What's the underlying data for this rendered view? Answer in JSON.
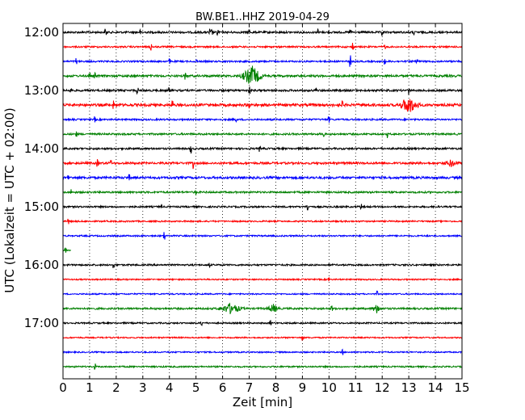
{
  "chart_data": {
    "type": "line",
    "title": "BW.BE1..HHZ 2019-04-29",
    "xlabel": "Zeit  [min]",
    "ylabel": "UTC (Lokalzeit = UTC + 02:00)",
    "xlim": [
      0,
      15
    ],
    "x_ticks": [
      0,
      1,
      2,
      3,
      4,
      5,
      6,
      7,
      8,
      9,
      10,
      11,
      12,
      13,
      14,
      15
    ],
    "y_tick_labels": [
      "12:00",
      "13:00",
      "14:00",
      "15:00",
      "16:00",
      "17:00"
    ],
    "grid": "vertical-dotted",
    "colors": {
      "black": "#000000",
      "red": "#ff0000",
      "blue": "#0000ff",
      "green": "#008000"
    },
    "traces": [
      {
        "start": "12:00",
        "color": "black",
        "noise": 1.2,
        "spikes": [
          [
            1.6,
            4
          ],
          [
            2.9,
            3
          ],
          [
            5.5,
            4
          ],
          [
            5.6,
            3
          ],
          [
            5.8,
            4
          ],
          [
            7.0,
            3
          ],
          [
            9.6,
            4
          ],
          [
            10.8,
            3
          ],
          [
            12.0,
            5
          ],
          [
            13.2,
            3
          ],
          [
            15.0,
            6
          ]
        ]
      },
      {
        "start": "12:15",
        "color": "red",
        "noise": 1.0,
        "spikes": [
          [
            3.3,
            4
          ],
          [
            10.9,
            6
          ],
          [
            12.1,
            4
          ],
          [
            13.0,
            3
          ]
        ]
      },
      {
        "start": "12:30",
        "color": "blue",
        "noise": 1.0,
        "spikes": [
          [
            0.5,
            4
          ],
          [
            4.0,
            3
          ],
          [
            5.0,
            3
          ],
          [
            10.8,
            7
          ],
          [
            12.1,
            3
          ],
          [
            13.3,
            3
          ]
        ]
      },
      {
        "start": "12:45",
        "color": "green",
        "noise": 1.3,
        "spikes": [
          [
            1.0,
            3
          ],
          [
            1.2,
            3
          ],
          [
            4.6,
            4
          ]
        ],
        "events": [
          [
            7.1,
            12,
            0.55
          ]
        ]
      },
      {
        "start": "13:00",
        "color": "black",
        "noise": 1.2,
        "spikes": [
          [
            0.3,
            3
          ],
          [
            2.8,
            3
          ],
          [
            4.0,
            3
          ],
          [
            7.0,
            4
          ],
          [
            9.5,
            3
          ],
          [
            13.0,
            6
          ]
        ]
      },
      {
        "start": "13:15",
        "color": "red",
        "noise": 1.6,
        "spikes": [
          [
            1.9,
            4
          ],
          [
            4.1,
            5
          ],
          [
            7.0,
            3
          ],
          [
            10.5,
            4
          ]
        ],
        "events": [
          [
            13.0,
            10,
            0.5
          ]
        ]
      },
      {
        "start": "13:30",
        "color": "blue",
        "noise": 1.0,
        "spikes": [
          [
            1.2,
            3
          ],
          [
            6.5,
            3
          ],
          [
            10.0,
            3
          ]
        ]
      },
      {
        "start": "13:45",
        "color": "green",
        "noise": 1.1,
        "spikes": [
          [
            0.5,
            3
          ],
          [
            9.8,
            4
          ],
          [
            12.2,
            4
          ]
        ]
      },
      {
        "start": "14:00",
        "color": "black",
        "noise": 1.1,
        "spikes": [
          [
            4.8,
            5
          ],
          [
            7.4,
            3
          ]
        ]
      },
      {
        "start": "14:15",
        "color": "red",
        "noise": 1.3,
        "spikes": [
          [
            1.3,
            4
          ],
          [
            1.8,
            3
          ],
          [
            4.9,
            6
          ]
        ],
        "events": [
          [
            14.6,
            4,
            0.35
          ]
        ]
      },
      {
        "start": "14:30",
        "color": "blue",
        "noise": 1.4,
        "spikes": [
          [
            0.2,
            3
          ],
          [
            2.5,
            3
          ]
        ]
      },
      {
        "start": "14:45",
        "color": "green",
        "noise": 1.1,
        "spikes": [
          [
            0.3,
            3
          ],
          [
            5.0,
            3
          ]
        ]
      },
      {
        "start": "15:00",
        "color": "black",
        "noise": 1.0,
        "spikes": [
          [
            3.7,
            3
          ],
          [
            9.2,
            5
          ],
          [
            11.2,
            4
          ]
        ]
      },
      {
        "start": "15:15",
        "color": "red",
        "noise": 0.9,
        "spikes": [
          [
            0.2,
            3
          ]
        ]
      },
      {
        "start": "15:30",
        "color": "blue",
        "noise": 0.9,
        "spikes": [
          [
            3.8,
            5
          ]
        ]
      },
      {
        "start": "15:45",
        "color": "green",
        "noise": 0.8,
        "spikes": [
          [
            0.1,
            3
          ]
        ],
        "end": 0.3
      },
      {
        "start": "16:00",
        "color": "black",
        "noise": 1.0,
        "spikes": [
          [
            1.9,
            3
          ],
          [
            5.5,
            3
          ]
        ]
      },
      {
        "start": "16:15",
        "color": "red",
        "noise": 0.8,
        "spikes": [
          [
            10.0,
            3
          ]
        ]
      },
      {
        "start": "16:30",
        "color": "blue",
        "noise": 0.8,
        "spikes": [
          [
            11.8,
            3
          ]
        ]
      },
      {
        "start": "16:45",
        "color": "green",
        "noise": 1.1,
        "spikes": [
          [
            10.1,
            3
          ]
        ],
        "events": [
          [
            6.3,
            6,
            0.6
          ],
          [
            7.9,
            5,
            0.3
          ],
          [
            11.8,
            5,
            0.25
          ]
        ]
      },
      {
        "start": "17:00",
        "color": "black",
        "noise": 0.9,
        "spikes": [
          [
            5.2,
            3
          ],
          [
            7.8,
            3
          ]
        ]
      },
      {
        "start": "17:15",
        "color": "red",
        "noise": 0.8,
        "spikes": [
          [
            9.0,
            3
          ]
        ]
      },
      {
        "start": "17:30",
        "color": "blue",
        "noise": 0.8,
        "spikes": [
          [
            10.5,
            3
          ]
        ]
      },
      {
        "start": "17:45",
        "color": "green",
        "noise": 0.9,
        "spikes": [
          [
            1.2,
            3
          ]
        ]
      }
    ]
  }
}
